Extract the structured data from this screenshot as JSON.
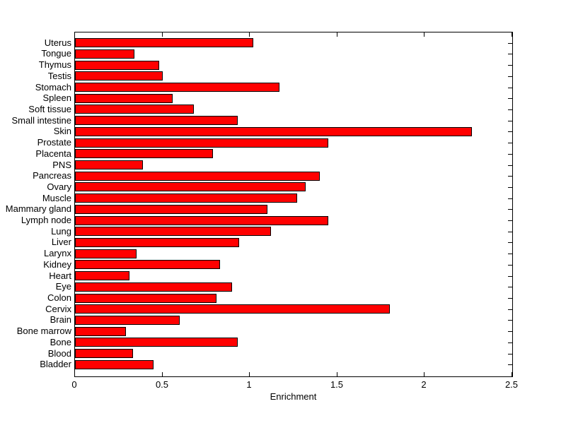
{
  "figure": {
    "background": "#ffffff"
  },
  "chart_data": {
    "type": "bar",
    "orientation": "horizontal",
    "title": "",
    "xlabel": "Enrichment",
    "ylabel": "",
    "xlim": [
      0,
      2.5
    ],
    "xticks": [
      0,
      0.5,
      1,
      1.5,
      2,
      2.5
    ],
    "xtick_labels": [
      "0",
      "0.5",
      "1",
      "1.5",
      "2",
      "2.5"
    ],
    "grid": false,
    "legend": "none",
    "bar_color": "#ff0000",
    "bar_edge_color": "#000000",
    "axis_color": "#000000",
    "categories": [
      "Uterus",
      "Tongue",
      "Thymus",
      "Testis",
      "Stomach",
      "Spleen",
      "Soft tissue",
      "Small intestine",
      "Skin",
      "Prostate",
      "Placenta",
      "PNS",
      "Pancreas",
      "Ovary",
      "Muscle",
      "Mammary gland",
      "Lymph node",
      "Lung",
      "Liver",
      "Larynx",
      "Kidney",
      "Heart",
      "Eye",
      "Colon",
      "Cervix",
      "Brain",
      "Bone marrow",
      "Bone",
      "Blood",
      "Bladder"
    ],
    "values": [
      1.02,
      0.34,
      0.48,
      0.5,
      1.17,
      0.56,
      0.68,
      0.93,
      2.27,
      1.45,
      0.79,
      0.39,
      1.4,
      1.32,
      1.27,
      1.1,
      1.45,
      1.12,
      0.94,
      0.35,
      0.83,
      0.31,
      0.9,
      0.81,
      1.8,
      0.6,
      0.29,
      0.93,
      0.33,
      0.45
    ]
  }
}
